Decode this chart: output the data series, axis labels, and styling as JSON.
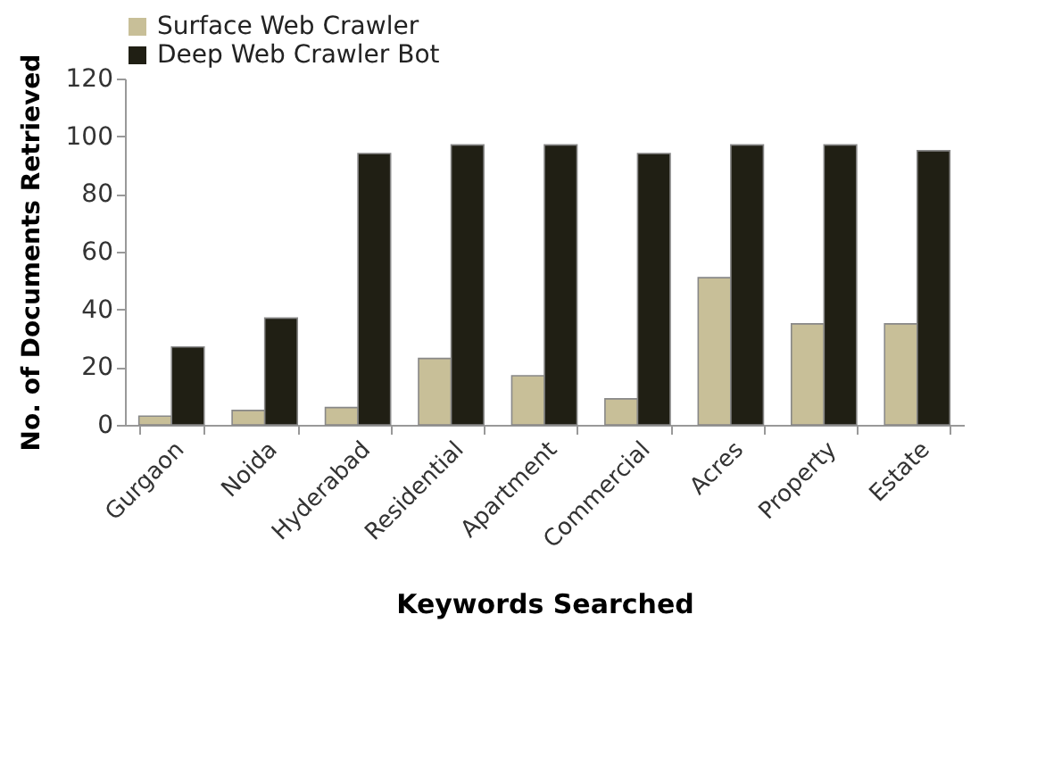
{
  "chart_data": {
    "type": "bar",
    "xlabel": "Keywords Searched",
    "ylabel": "No. of  Documents Retrieved",
    "categories": [
      "Gurgaon",
      "Noida",
      "Hyderabad",
      "Residential",
      "Apartment",
      "Commercial",
      "Acres",
      "Property",
      "Estate"
    ],
    "series": [
      {
        "name": "Surface Web Crawler",
        "color": "#c8bf98",
        "values": [
          3,
          5,
          6,
          23,
          17,
          9,
          51,
          35,
          35
        ]
      },
      {
        "name": "Deep Web Crawler Bot",
        "color": "#201f14",
        "values": [
          27,
          37,
          94,
          97,
          97,
          94,
          97,
          97,
          95
        ]
      }
    ],
    "ylim": [
      0,
      120
    ],
    "yticks": [
      0,
      20,
      40,
      60,
      80,
      100,
      120
    ],
    "grid": false,
    "legend": "top"
  }
}
